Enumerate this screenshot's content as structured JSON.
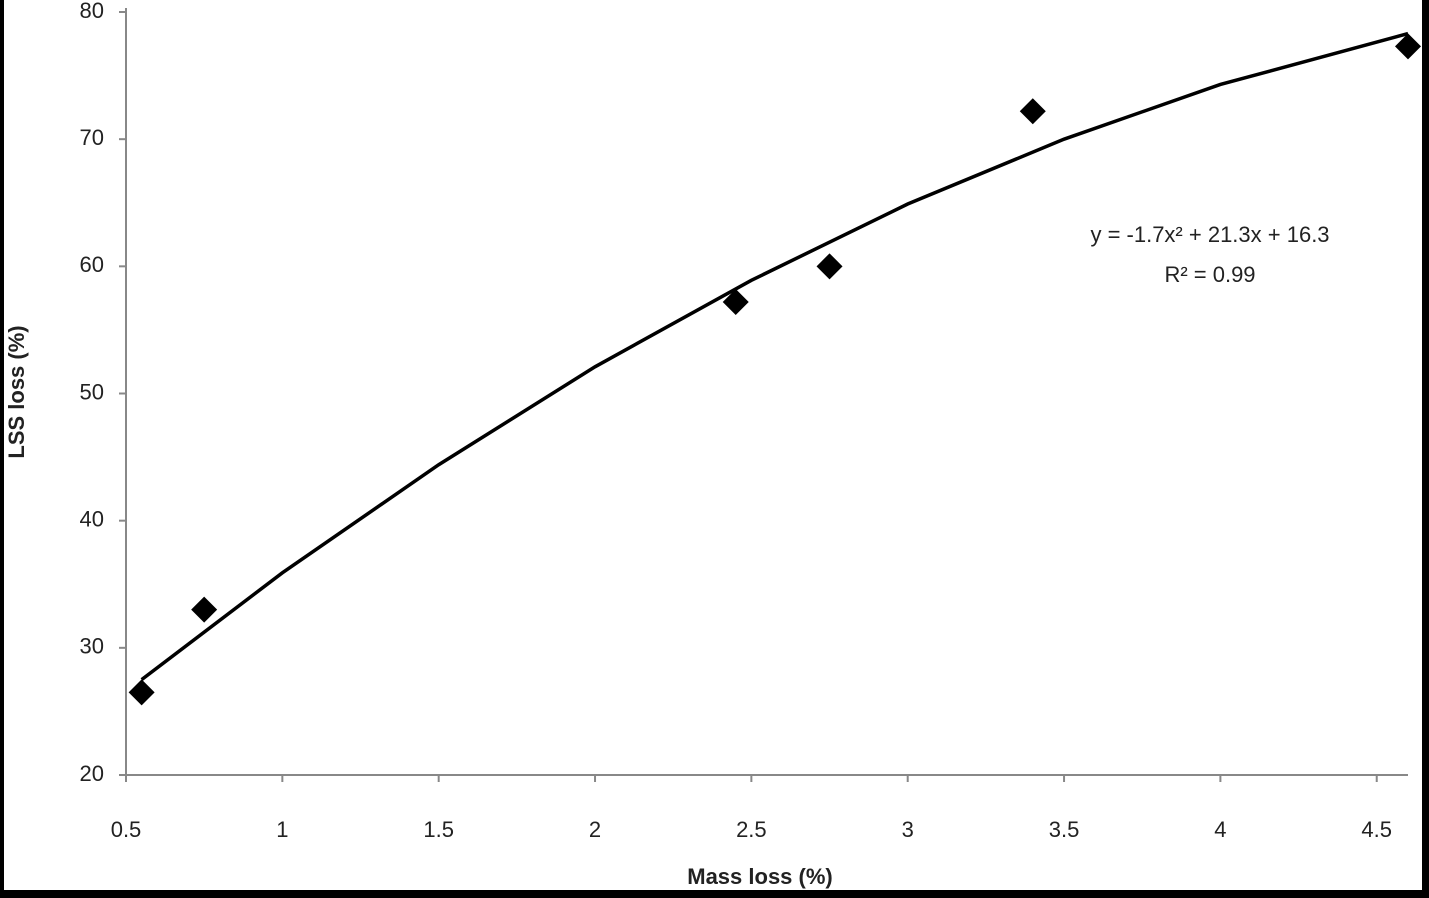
{
  "chart_data": {
    "type": "scatter",
    "x_label": "Mass loss (%)",
    "y_label": "LSS loss (%)",
    "annotations": [
      "y = -1.7x² + 21.3x + 16.3",
      "R² = 0.99"
    ],
    "xlim": [
      0.5,
      4.6
    ],
    "xticks": [
      0.5,
      1,
      1.5,
      2,
      2.5,
      3,
      3.5,
      4,
      4.5
    ],
    "ylim": [
      20,
      80
    ],
    "yticks": [
      20,
      30,
      40,
      50,
      60,
      70,
      80
    ],
    "grid": false,
    "series": [
      {
        "type": "scatter",
        "color": "#000000",
        "x": [
          0.55,
          0.75,
          2.45,
          2.75,
          3.4,
          4.6
        ],
        "values": [
          26.5,
          33,
          57.2,
          60,
          72.2,
          77.3
        ]
      },
      {
        "type": "line",
        "color": "#000000",
        "x": [
          0.55,
          1,
          1.5,
          2,
          2.5,
          3,
          3.5,
          4,
          4.6
        ],
        "values": [
          27.5,
          35.9,
          44.4,
          52.1,
          58.9,
          64.9,
          70.0,
          74.3,
          78.3
        ]
      }
    ]
  }
}
